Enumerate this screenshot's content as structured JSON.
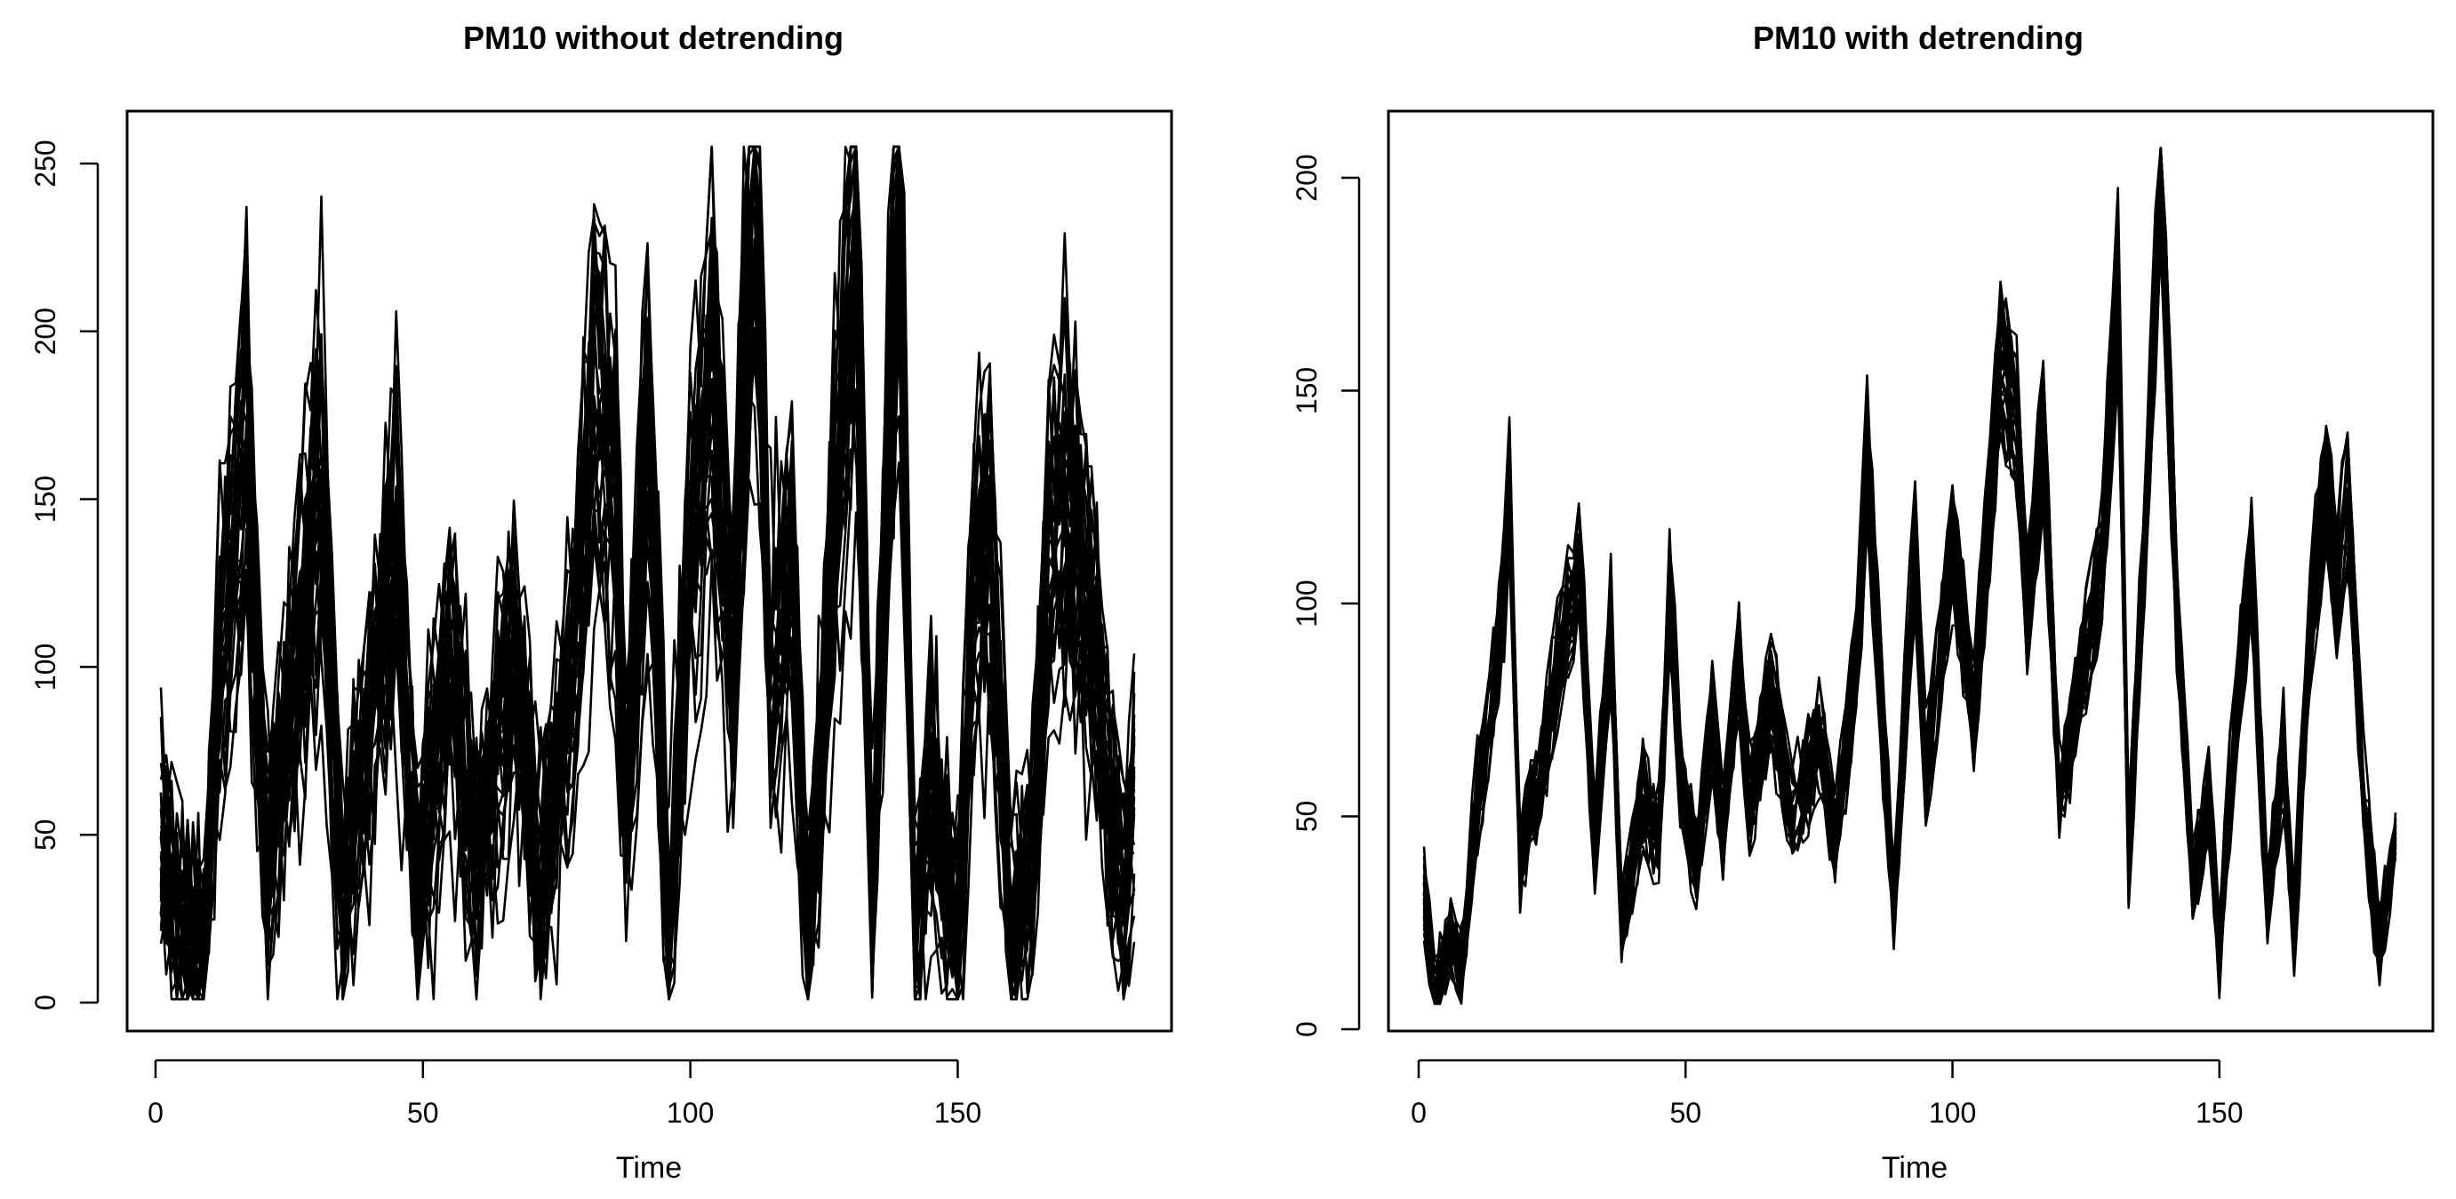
{
  "chart_data": [
    {
      "type": "line",
      "title": "PM10 without detrending",
      "xlabel": "Time",
      "ylabel": "",
      "xlim": [
        1,
        183
      ],
      "ylim": [
        0,
        255
      ],
      "xticks": [
        0,
        50,
        100,
        150
      ],
      "yticks": [
        0,
        50,
        100,
        150,
        200,
        250
      ],
      "grid": false,
      "legend": "none",
      "n_series": 30,
      "series_count_note": "",
      "x": [
        1,
        183
      ],
      "series": [
        {
          "name": "",
          "anchor_points": [
            [
              1,
              45
            ],
            [
              5,
              15
            ],
            [
              9,
              8
            ],
            [
              12,
              100
            ],
            [
              17,
              167
            ],
            [
              21,
              35
            ],
            [
              27,
              110
            ],
            [
              31,
              152
            ],
            [
              35,
              20
            ],
            [
              38,
              60
            ],
            [
              45,
              135
            ],
            [
              49,
              30
            ],
            [
              55,
              100
            ],
            [
              60,
              40
            ],
            [
              67,
              105
            ],
            [
              72,
              30
            ],
            [
              78,
              95
            ],
            [
              82,
              176
            ],
            [
              86,
              150
            ],
            [
              88,
              60
            ],
            [
              92,
              164
            ],
            [
              96,
              20
            ],
            [
              100,
              130
            ],
            [
              104,
              185
            ],
            [
              108,
              100
            ],
            [
              112,
              255
            ],
            [
              115,
              90
            ],
            [
              119,
              125
            ],
            [
              122,
              15
            ],
            [
              128,
              165
            ],
            [
              131,
              236
            ],
            [
              134,
              30
            ],
            [
              139,
              247
            ],
            [
              142,
              20
            ],
            [
              145,
              60
            ],
            [
              150,
              15
            ],
            [
              153,
              120
            ],
            [
              156,
              137
            ],
            [
              160,
              20
            ],
            [
              164,
              40
            ],
            [
              167,
              130
            ],
            [
              171,
              146
            ],
            [
              175,
              110
            ],
            [
              178,
              60
            ],
            [
              181,
              30
            ],
            [
              183,
              58
            ]
          ]
        }
      ]
    },
    {
      "type": "line",
      "title": "PM10 with detrending",
      "xlabel": "Time",
      "ylabel": "",
      "xlim": [
        1,
        183
      ],
      "ylim": [
        0,
        207
      ],
      "xticks": [
        0,
        50,
        100,
        150
      ],
      "yticks": [
        0,
        50,
        100,
        150,
        200
      ],
      "grid": false,
      "legend": "none",
      "n_series": 30,
      "x": [
        1,
        183
      ],
      "series": [
        {
          "name": "",
          "anchor_points": [
            [
              1,
              32
            ],
            [
              3,
              7
            ],
            [
              6,
              22
            ],
            [
              8,
              15
            ],
            [
              11,
              55
            ],
            [
              14,
              80
            ],
            [
              16,
              102
            ],
            [
              17,
              129
            ],
            [
              19,
              40
            ],
            [
              22,
              55
            ],
            [
              26,
              85
            ],
            [
              30,
              111
            ],
            [
              33,
              45
            ],
            [
              36,
              95
            ],
            [
              38,
              25
            ],
            [
              42,
              55
            ],
            [
              45,
              45
            ],
            [
              47,
              105
            ],
            [
              49,
              60
            ],
            [
              52,
              40
            ],
            [
              55,
              72
            ],
            [
              57,
              45
            ],
            [
              60,
              90
            ],
            [
              62,
              55
            ],
            [
              66,
              80
            ],
            [
              70,
              50
            ],
            [
              75,
              70
            ],
            [
              78,
              45
            ],
            [
              82,
              85
            ],
            [
              84,
              135
            ],
            [
              86,
              90
            ],
            [
              89,
              30
            ],
            [
              93,
              115
            ],
            [
              95,
              60
            ],
            [
              100,
              115
            ],
            [
              104,
              75
            ],
            [
              109,
              158
            ],
            [
              112,
              145
            ],
            [
              114,
              100
            ],
            [
              117,
              143
            ],
            [
              120,
              55
            ],
            [
              125,
              90
            ],
            [
              128,
              110
            ],
            [
              131,
              176
            ],
            [
              133,
              40
            ],
            [
              136,
              115
            ],
            [
              139,
              207
            ],
            [
              142,
              100
            ],
            [
              145,
              35
            ],
            [
              148,
              55
            ],
            [
              150,
              20
            ],
            [
              153,
              75
            ],
            [
              156,
              110
            ],
            [
              159,
              30
            ],
            [
              162,
              65
            ],
            [
              164,
              25
            ],
            [
              167,
              95
            ],
            [
              170,
              132
            ],
            [
              172,
              105
            ],
            [
              174,
              127
            ],
            [
              177,
              55
            ],
            [
              180,
              20
            ],
            [
              183,
              45
            ]
          ]
        }
      ]
    }
  ]
}
